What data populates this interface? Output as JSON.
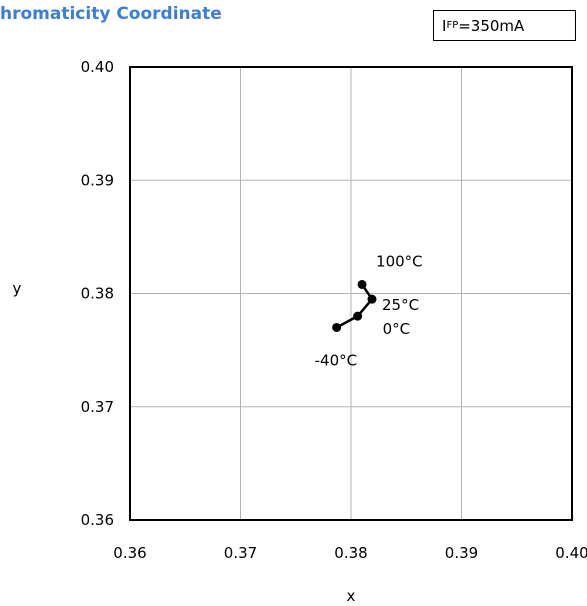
{
  "header": {
    "title": "hromaticity Coordinate",
    "condition_symbol": "I",
    "condition_subscript": "FP",
    "condition_value": "=350mA"
  },
  "chart_data": {
    "type": "scatter",
    "title": "hromaticity Coordinate",
    "xlabel": "x",
    "ylabel": "y",
    "xlim": [
      0.36,
      0.4
    ],
    "ylim": [
      0.36,
      0.4
    ],
    "xticks": [
      "0.36",
      "0.37",
      "0.38",
      "0.39",
      "0.40"
    ],
    "yticks": [
      "0.36",
      "0.37",
      "0.38",
      "0.39",
      "0.40"
    ],
    "grid": true,
    "series": [
      {
        "points": [
          {
            "label": "-40°C",
            "x": 0.3787,
            "y": 0.377
          },
          {
            "label": "0°C",
            "x": 0.3806,
            "y": 0.378
          },
          {
            "label": "25°C",
            "x": 0.3819,
            "y": 0.3795
          },
          {
            "label": "100°C",
            "x": 0.381,
            "y": 0.3808
          }
        ],
        "color": "#000000"
      }
    ]
  }
}
